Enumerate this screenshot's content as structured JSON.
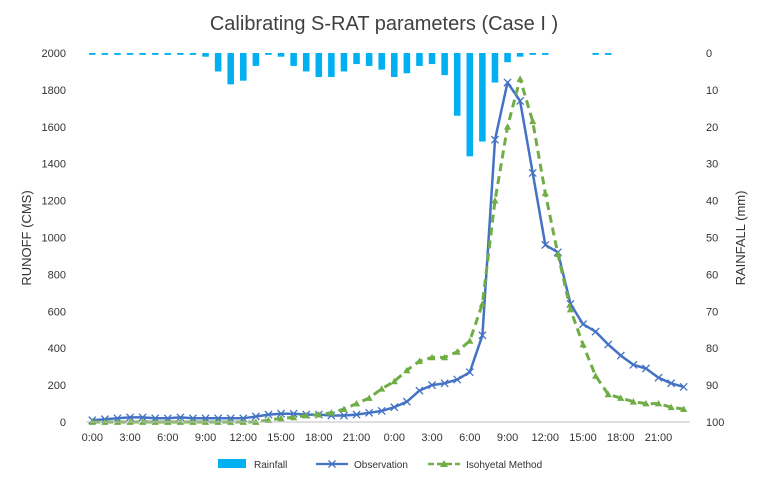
{
  "chart_data": {
    "type": "line",
    "title": "Calibrating S-RAT parameters (Case I )",
    "ylabel": "RUNOFF (CMS)",
    "y2label": "RAINFALL (mm)",
    "xlabel": "",
    "ylim": [
      0,
      2000
    ],
    "y2lim": [
      0,
      100
    ],
    "y2_inverted": true,
    "grid": false,
    "legend_position": "bottom",
    "yticks": [
      "0",
      "200",
      "400",
      "600",
      "800",
      "1000",
      "1200",
      "1400",
      "1600",
      "1800",
      "2000"
    ],
    "y2ticks": [
      "0",
      "10",
      "20",
      "30",
      "40",
      "50",
      "60",
      "70",
      "80",
      "90",
      "100"
    ],
    "xtick_labels": [
      "0:00",
      "3:00",
      "6:00",
      "9:00",
      "12:00",
      "15:00",
      "18:00",
      "21:00",
      "0:00",
      "3:00",
      "6:00",
      "9:00",
      "12:00",
      "15:00",
      "18:00",
      "21:00"
    ],
    "hours": [
      0,
      1,
      2,
      3,
      4,
      5,
      6,
      7,
      8,
      9,
      10,
      11,
      12,
      13,
      14,
      15,
      16,
      17,
      18,
      19,
      20,
      21,
      22,
      23,
      24,
      25,
      26,
      27,
      28,
      29,
      30,
      31,
      32,
      33,
      34,
      35,
      36,
      37,
      38,
      39,
      40,
      41,
      42,
      43,
      44,
      45,
      46,
      47
    ],
    "series": [
      {
        "name": "Rainfall",
        "kind": "bar",
        "axis": "right",
        "color": "#00B0F0",
        "values": [
          0.5,
          0.5,
          0.5,
          0.5,
          0.5,
          0.5,
          0.5,
          0.5,
          0.5,
          1,
          5,
          8.5,
          7.5,
          3.5,
          0.5,
          1,
          3.5,
          5,
          6.5,
          6.5,
          5,
          3,
          3.5,
          4.5,
          6.5,
          5.5,
          3.5,
          3,
          6,
          17,
          28,
          24,
          8,
          2.5,
          1,
          0.5,
          0.5,
          0,
          0,
          0,
          0.5,
          0.5,
          0,
          0,
          0,
          0,
          0,
          0
        ]
      },
      {
        "name": "Observation",
        "kind": "line",
        "axis": "left",
        "color": "#4472C4",
        "marker": "x",
        "values": [
          10,
          15,
          20,
          25,
          25,
          20,
          20,
          25,
          20,
          20,
          20,
          20,
          20,
          30,
          40,
          45,
          45,
          40,
          40,
          35,
          35,
          40,
          50,
          60,
          80,
          110,
          170,
          200,
          210,
          230,
          270,
          470,
          1530,
          1840,
          1740,
          1350,
          960,
          920,
          640,
          530,
          490,
          420,
          360,
          310,
          290,
          240,
          210,
          190
        ]
      },
      {
        "name": "Isohyetal Method",
        "kind": "line",
        "axis": "left",
        "color": "#70AD47",
        "marker": "triangle",
        "dash": true,
        "values": [
          0,
          0,
          0,
          0,
          0,
          0,
          0,
          0,
          0,
          0,
          0,
          0,
          0,
          0,
          10,
          20,
          25,
          35,
          40,
          50,
          70,
          100,
          130,
          180,
          220,
          280,
          330,
          350,
          350,
          380,
          440,
          640,
          1200,
          1600,
          1860,
          1630,
          1240,
          910,
          610,
          420,
          250,
          150,
          130,
          110,
          100,
          100,
          80,
          70
        ]
      }
    ]
  }
}
